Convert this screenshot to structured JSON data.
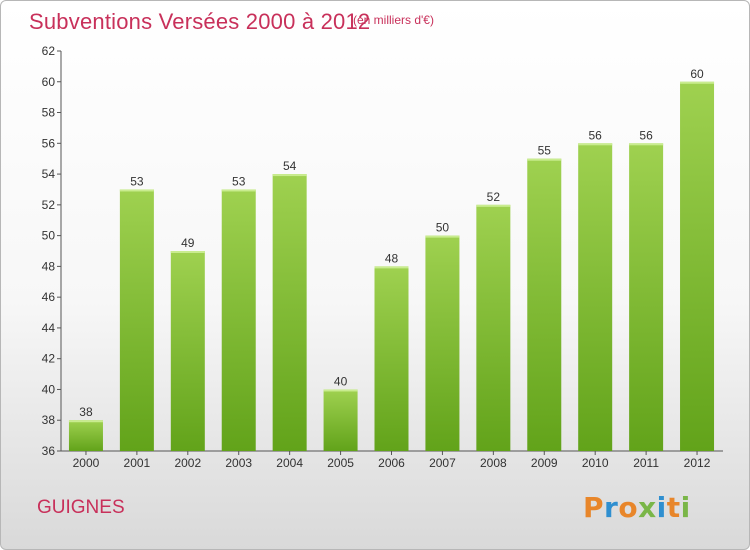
{
  "header": {
    "title": "Subventions Versées 2000 à 2012",
    "unit_note": "(en milliers d'€)"
  },
  "footer": {
    "commune": "GUIGNES",
    "logo_text": "Proxiti"
  },
  "colors": {
    "title": "#c8305a",
    "bar_light": "#9fd150",
    "bar_dark": "#62a31a",
    "logo_letters": [
      "#e8862a",
      "#2f8fd0",
      "#e8862a",
      "#7ab648",
      "#2f8fd0",
      "#e8862a",
      "#7ab648"
    ]
  },
  "chart_data": {
    "type": "bar",
    "title": "Subventions Versées 2000 à 2012",
    "subtitle": "(en milliers d'€)",
    "categories": [
      "2000",
      "2001",
      "2002",
      "2003",
      "2004",
      "2005",
      "2006",
      "2007",
      "2008",
      "2009",
      "2010",
      "2011",
      "2012"
    ],
    "values": [
      38,
      53,
      49,
      53,
      54,
      40,
      48,
      50,
      52,
      55,
      56,
      56,
      60
    ],
    "ylim": [
      36,
      62
    ],
    "yticks": [
      36,
      38,
      40,
      42,
      44,
      46,
      48,
      50,
      52,
      54,
      56,
      58,
      60,
      62
    ],
    "grid": false,
    "data_labels": true
  }
}
